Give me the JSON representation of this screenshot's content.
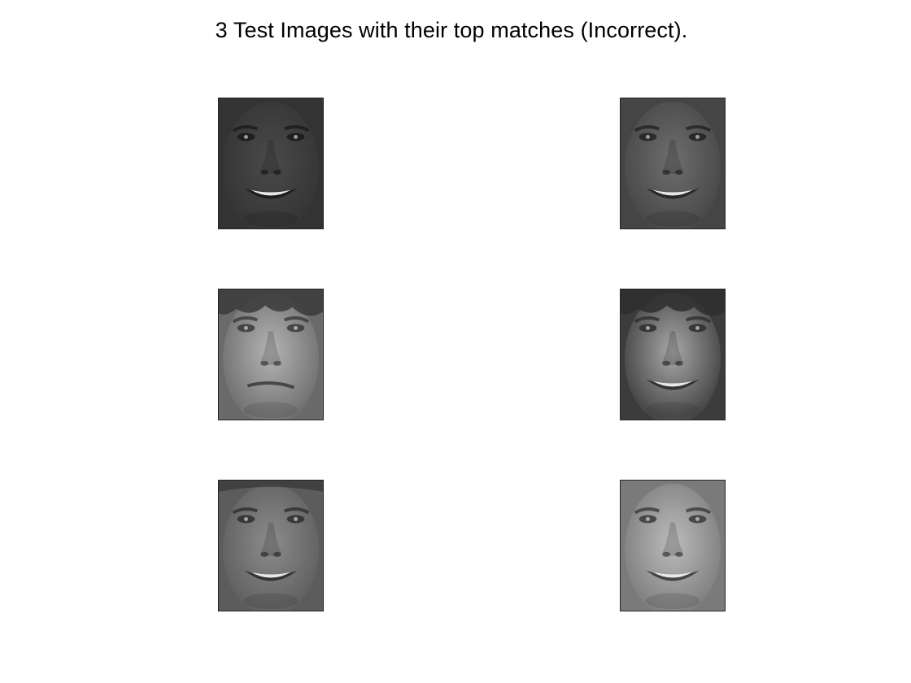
{
  "figure": {
    "title": "3 Test Images with their top matches (Incorrect)."
  },
  "pairs": [
    {
      "test": {
        "tone": "dark",
        "skin": "#4a4a4a",
        "bg": "#333333",
        "features": "#1a1a1a",
        "expression": "smile-teeth",
        "hair": "none"
      },
      "match": {
        "tone": "mid",
        "skin": "#6e6e6e",
        "bg": "#454545",
        "features": "#222222",
        "expression": "smile-teeth",
        "hair": "none"
      }
    },
    {
      "test": {
        "tone": "light",
        "skin": "#b4b4b4",
        "bg": "#6a6a6a",
        "features": "#3a3a3a",
        "expression": "neutral",
        "hair": "bangs"
      },
      "match": {
        "tone": "light",
        "skin": "#a8a8a8",
        "bg": "#3c3c3c",
        "features": "#2e2e2e",
        "expression": "smile-teeth",
        "hair": "bangs"
      }
    },
    {
      "test": {
        "tone": "mid",
        "skin": "#8c8c8c",
        "bg": "#5c5c5c",
        "features": "#2e2e2e",
        "expression": "smile-teeth",
        "hair": "short"
      },
      "match": {
        "tone": "light",
        "skin": "#bcbcbc",
        "bg": "#7a7a7a",
        "features": "#3a3a3a",
        "expression": "smile-teeth",
        "hair": "none"
      }
    }
  ]
}
